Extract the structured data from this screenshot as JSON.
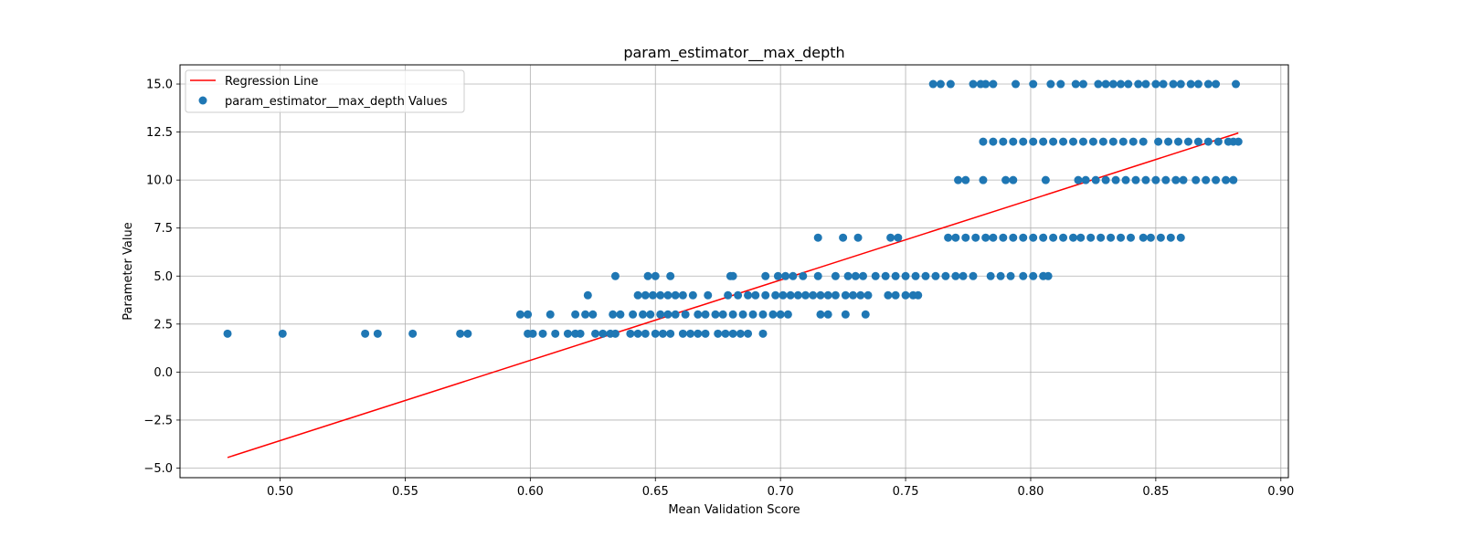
{
  "chart_data": {
    "type": "scatter",
    "title": "param_estimator__max_depth",
    "xlabel": "Mean Validation Score",
    "ylabel": "Parameter Value",
    "xlim": [
      0.46,
      0.903
    ],
    "ylim": [
      -5.5,
      16.0
    ],
    "grid": true,
    "legend_position": "top-left",
    "xticks": [
      {
        "value": 0.5,
        "label": "0.50"
      },
      {
        "value": 0.55,
        "label": "0.55"
      },
      {
        "value": 0.6,
        "label": "0.60"
      },
      {
        "value": 0.65,
        "label": "0.65"
      },
      {
        "value": 0.7,
        "label": "0.70"
      },
      {
        "value": 0.75,
        "label": "0.75"
      },
      {
        "value": 0.8,
        "label": "0.80"
      },
      {
        "value": 0.85,
        "label": "0.85"
      },
      {
        "value": 0.9,
        "label": "0.90"
      }
    ],
    "yticks": [
      {
        "value": -5.0,
        "label": "−5.0"
      },
      {
        "value": -2.5,
        "label": "−2.5"
      },
      {
        "value": 0.0,
        "label": "0.0"
      },
      {
        "value": 2.5,
        "label": "2.5"
      },
      {
        "value": 5.0,
        "label": "5.0"
      },
      {
        "value": 7.5,
        "label": "7.5"
      },
      {
        "value": 10.0,
        "label": "10.0"
      },
      {
        "value": 12.5,
        "label": "12.5"
      },
      {
        "value": 15.0,
        "label": "15.0"
      }
    ],
    "series": [
      {
        "name": "Regression Line",
        "kind": "line",
        "color": "#ff0000",
        "points": [
          [
            0.479,
            -4.45
          ],
          [
            0.883,
            12.45
          ]
        ]
      },
      {
        "name": "param_estimator__max_depth Values",
        "kind": "scatter",
        "color": "#1f77b4",
        "points": [
          [
            0.479,
            2
          ],
          [
            0.501,
            2
          ],
          [
            0.534,
            2
          ],
          [
            0.539,
            2
          ],
          [
            0.553,
            2
          ],
          [
            0.572,
            2
          ],
          [
            0.575,
            2
          ],
          [
            0.599,
            2
          ],
          [
            0.601,
            2
          ],
          [
            0.605,
            2
          ],
          [
            0.61,
            2
          ],
          [
            0.615,
            2
          ],
          [
            0.618,
            2
          ],
          [
            0.62,
            2
          ],
          [
            0.626,
            2
          ],
          [
            0.629,
            2
          ],
          [
            0.632,
            2
          ],
          [
            0.634,
            2
          ],
          [
            0.64,
            2
          ],
          [
            0.643,
            2
          ],
          [
            0.646,
            2
          ],
          [
            0.65,
            2
          ],
          [
            0.653,
            2
          ],
          [
            0.656,
            2
          ],
          [
            0.661,
            2
          ],
          [
            0.664,
            2
          ],
          [
            0.667,
            2
          ],
          [
            0.67,
            2
          ],
          [
            0.675,
            2
          ],
          [
            0.678,
            2
          ],
          [
            0.681,
            2
          ],
          [
            0.684,
            2
          ],
          [
            0.687,
            2
          ],
          [
            0.693,
            2
          ],
          [
            0.596,
            3
          ],
          [
            0.599,
            3
          ],
          [
            0.608,
            3
          ],
          [
            0.618,
            3
          ],
          [
            0.622,
            3
          ],
          [
            0.625,
            3
          ],
          [
            0.633,
            3
          ],
          [
            0.636,
            3
          ],
          [
            0.641,
            3
          ],
          [
            0.645,
            3
          ],
          [
            0.648,
            3
          ],
          [
            0.652,
            3
          ],
          [
            0.655,
            3
          ],
          [
            0.658,
            3
          ],
          [
            0.662,
            3
          ],
          [
            0.667,
            3
          ],
          [
            0.67,
            3
          ],
          [
            0.674,
            3
          ],
          [
            0.677,
            3
          ],
          [
            0.681,
            3
          ],
          [
            0.685,
            3
          ],
          [
            0.689,
            3
          ],
          [
            0.693,
            3
          ],
          [
            0.697,
            3
          ],
          [
            0.7,
            3
          ],
          [
            0.703,
            3
          ],
          [
            0.716,
            3
          ],
          [
            0.719,
            3
          ],
          [
            0.726,
            3
          ],
          [
            0.734,
            3
          ],
          [
            0.623,
            4
          ],
          [
            0.643,
            4
          ],
          [
            0.646,
            4
          ],
          [
            0.649,
            4
          ],
          [
            0.652,
            4
          ],
          [
            0.655,
            4
          ],
          [
            0.658,
            4
          ],
          [
            0.661,
            4
          ],
          [
            0.665,
            4
          ],
          [
            0.671,
            4
          ],
          [
            0.679,
            4
          ],
          [
            0.683,
            4
          ],
          [
            0.687,
            4
          ],
          [
            0.69,
            4
          ],
          [
            0.694,
            4
          ],
          [
            0.698,
            4
          ],
          [
            0.701,
            4
          ],
          [
            0.704,
            4
          ],
          [
            0.707,
            4
          ],
          [
            0.71,
            4
          ],
          [
            0.713,
            4
          ],
          [
            0.716,
            4
          ],
          [
            0.719,
            4
          ],
          [
            0.722,
            4
          ],
          [
            0.726,
            4
          ],
          [
            0.729,
            4
          ],
          [
            0.732,
            4
          ],
          [
            0.735,
            4
          ],
          [
            0.743,
            4
          ],
          [
            0.746,
            4
          ],
          [
            0.75,
            4
          ],
          [
            0.753,
            4
          ],
          [
            0.755,
            4
          ],
          [
            0.634,
            5
          ],
          [
            0.647,
            5
          ],
          [
            0.65,
            5
          ],
          [
            0.656,
            5
          ],
          [
            0.68,
            5
          ],
          [
            0.681,
            5
          ],
          [
            0.694,
            5
          ],
          [
            0.699,
            5
          ],
          [
            0.702,
            5
          ],
          [
            0.705,
            5
          ],
          [
            0.709,
            5
          ],
          [
            0.715,
            5
          ],
          [
            0.722,
            5
          ],
          [
            0.727,
            5
          ],
          [
            0.73,
            5
          ],
          [
            0.733,
            5
          ],
          [
            0.738,
            5
          ],
          [
            0.742,
            5
          ],
          [
            0.746,
            5
          ],
          [
            0.75,
            5
          ],
          [
            0.754,
            5
          ],
          [
            0.758,
            5
          ],
          [
            0.762,
            5
          ],
          [
            0.766,
            5
          ],
          [
            0.77,
            5
          ],
          [
            0.773,
            5
          ],
          [
            0.777,
            5
          ],
          [
            0.784,
            5
          ],
          [
            0.788,
            5
          ],
          [
            0.792,
            5
          ],
          [
            0.797,
            5
          ],
          [
            0.801,
            5
          ],
          [
            0.805,
            5
          ],
          [
            0.807,
            5
          ],
          [
            0.715,
            7
          ],
          [
            0.725,
            7
          ],
          [
            0.731,
            7
          ],
          [
            0.744,
            7
          ],
          [
            0.747,
            7
          ],
          [
            0.767,
            7
          ],
          [
            0.77,
            7
          ],
          [
            0.774,
            7
          ],
          [
            0.778,
            7
          ],
          [
            0.782,
            7
          ],
          [
            0.785,
            7
          ],
          [
            0.789,
            7
          ],
          [
            0.793,
            7
          ],
          [
            0.797,
            7
          ],
          [
            0.801,
            7
          ],
          [
            0.805,
            7
          ],
          [
            0.809,
            7
          ],
          [
            0.813,
            7
          ],
          [
            0.817,
            7
          ],
          [
            0.82,
            7
          ],
          [
            0.824,
            7
          ],
          [
            0.828,
            7
          ],
          [
            0.832,
            7
          ],
          [
            0.836,
            7
          ],
          [
            0.84,
            7
          ],
          [
            0.845,
            7
          ],
          [
            0.848,
            7
          ],
          [
            0.852,
            7
          ],
          [
            0.856,
            7
          ],
          [
            0.86,
            7
          ],
          [
            0.771,
            10
          ],
          [
            0.774,
            10
          ],
          [
            0.781,
            10
          ],
          [
            0.79,
            10
          ],
          [
            0.793,
            10
          ],
          [
            0.806,
            10
          ],
          [
            0.819,
            10
          ],
          [
            0.822,
            10
          ],
          [
            0.826,
            10
          ],
          [
            0.83,
            10
          ],
          [
            0.834,
            10
          ],
          [
            0.838,
            10
          ],
          [
            0.842,
            10
          ],
          [
            0.846,
            10
          ],
          [
            0.85,
            10
          ],
          [
            0.854,
            10
          ],
          [
            0.858,
            10
          ],
          [
            0.861,
            10
          ],
          [
            0.866,
            10
          ],
          [
            0.87,
            10
          ],
          [
            0.874,
            10
          ],
          [
            0.878,
            10
          ],
          [
            0.881,
            10
          ],
          [
            0.781,
            12
          ],
          [
            0.785,
            12
          ],
          [
            0.789,
            12
          ],
          [
            0.793,
            12
          ],
          [
            0.797,
            12
          ],
          [
            0.801,
            12
          ],
          [
            0.805,
            12
          ],
          [
            0.809,
            12
          ],
          [
            0.813,
            12
          ],
          [
            0.817,
            12
          ],
          [
            0.821,
            12
          ],
          [
            0.825,
            12
          ],
          [
            0.829,
            12
          ],
          [
            0.833,
            12
          ],
          [
            0.837,
            12
          ],
          [
            0.841,
            12
          ],
          [
            0.845,
            12
          ],
          [
            0.851,
            12
          ],
          [
            0.855,
            12
          ],
          [
            0.859,
            12
          ],
          [
            0.863,
            12
          ],
          [
            0.867,
            12
          ],
          [
            0.871,
            12
          ],
          [
            0.875,
            12
          ],
          [
            0.879,
            12
          ],
          [
            0.881,
            12
          ],
          [
            0.883,
            12
          ],
          [
            0.761,
            15
          ],
          [
            0.764,
            15
          ],
          [
            0.768,
            15
          ],
          [
            0.777,
            15
          ],
          [
            0.78,
            15
          ],
          [
            0.782,
            15
          ],
          [
            0.785,
            15
          ],
          [
            0.794,
            15
          ],
          [
            0.801,
            15
          ],
          [
            0.808,
            15
          ],
          [
            0.812,
            15
          ],
          [
            0.818,
            15
          ],
          [
            0.821,
            15
          ],
          [
            0.827,
            15
          ],
          [
            0.83,
            15
          ],
          [
            0.833,
            15
          ],
          [
            0.836,
            15
          ],
          [
            0.839,
            15
          ],
          [
            0.843,
            15
          ],
          [
            0.846,
            15
          ],
          [
            0.85,
            15
          ],
          [
            0.853,
            15
          ],
          [
            0.857,
            15
          ],
          [
            0.86,
            15
          ],
          [
            0.864,
            15
          ],
          [
            0.867,
            15
          ],
          [
            0.871,
            15
          ],
          [
            0.874,
            15
          ],
          [
            0.882,
            15
          ]
        ]
      }
    ]
  }
}
